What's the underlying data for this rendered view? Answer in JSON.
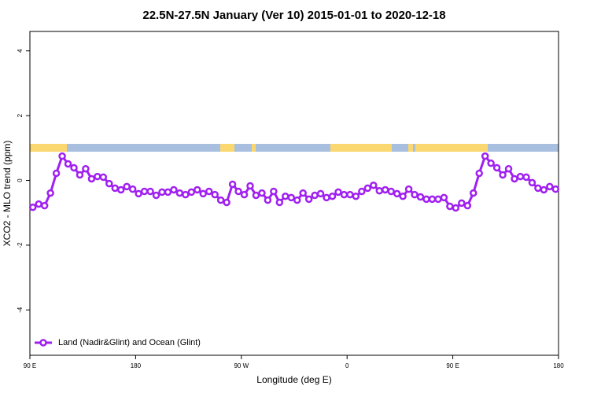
{
  "chart_data": {
    "type": "line",
    "title": "22.5N-27.5N January (Ver 10)   2015-01-01 to 2020-12-18",
    "x_label": "Longitude (deg E)",
    "y_label": "XCO2 - MLO trend (ppm)",
    "x": [
      92.5,
      97.5,
      102.5,
      107.5,
      112.5,
      117.5,
      122.5,
      127.5,
      132.5,
      137.5,
      142.5,
      147.5,
      152.5,
      157.5,
      162.5,
      167.5,
      172.5,
      177.5,
      182.5,
      187.5,
      192.5,
      197.5,
      202.5,
      207.5,
      212.5,
      217.5,
      222.5,
      227.5,
      232.5,
      237.5,
      242.5,
      247.5,
      252.5,
      257.5,
      262.5,
      267.5,
      272.5,
      277.5,
      282.5,
      287.5,
      292.5,
      297.5,
      302.5,
      307.5,
      312.5,
      317.5,
      322.5,
      327.5,
      332.5,
      337.5,
      342.5,
      347.5,
      352.5,
      357.5,
      362.5,
      367.5,
      372.5,
      377.5,
      382.5,
      387.5,
      392.5,
      397.5,
      402.5,
      407.5,
      412.5,
      417.5,
      422.5,
      427.5,
      432.5,
      437.5,
      442.5,
      447.5,
      452.5,
      457.5,
      462.5,
      467.5,
      472.5,
      477.5,
      482.5,
      487.5,
      492.5,
      497.5,
      502.5,
      507.5,
      512.5,
      517.5,
      522.5,
      527.5,
      532.5,
      537.5
    ],
    "series": [
      {
        "name": "Land (Nadir&Glint) and Ocean (Glint)",
        "color": "#a020f0",
        "values": [
          -0.83,
          -0.73,
          -0.78,
          -0.39,
          0.22,
          0.75,
          0.51,
          0.39,
          0.17,
          0.36,
          0.05,
          0.12,
          0.1,
          -0.1,
          -0.24,
          -0.29,
          -0.19,
          -0.27,
          -0.41,
          -0.34,
          -0.34,
          -0.46,
          -0.36,
          -0.36,
          -0.29,
          -0.39,
          -0.44,
          -0.36,
          -0.29,
          -0.41,
          -0.34,
          -0.44,
          -0.61,
          -0.68,
          -0.12,
          -0.34,
          -0.44,
          -0.17,
          -0.46,
          -0.39,
          -0.61,
          -0.34,
          -0.68,
          -0.49,
          -0.53,
          -0.61,
          -0.39,
          -0.58,
          -0.46,
          -0.41,
          -0.53,
          -0.49,
          -0.36,
          -0.44,
          -0.44,
          -0.49,
          -0.34,
          -0.24,
          -0.15,
          -0.32,
          -0.29,
          -0.34,
          -0.41,
          -0.49,
          -0.27,
          -0.44,
          -0.51,
          -0.58,
          -0.58,
          -0.58,
          -0.53,
          -0.8,
          -0.85,
          -0.7,
          -0.78,
          -0.39,
          0.22,
          0.75,
          0.53,
          0.39,
          0.17,
          0.36,
          0.05,
          0.12,
          0.1,
          -0.07,
          -0.24,
          -0.29,
          -0.19,
          -0.27
        ]
      }
    ],
    "xlim": [
      90,
      540
    ],
    "xticks": [
      {
        "value": 90,
        "label": "90 E"
      },
      180,
      {
        "value": 270,
        "label": "90 W"
      },
      {
        "value": 360,
        "label": "0"
      },
      {
        "value": 450,
        "label": "90 E"
      },
      {
        "value": 540,
        "label": "180"
      }
    ],
    "ylim": [
      -5.4,
      4.6
    ],
    "yticks": [
      -4,
      -2,
      0,
      2,
      4
    ],
    "legend": "bottomleft"
  }
}
